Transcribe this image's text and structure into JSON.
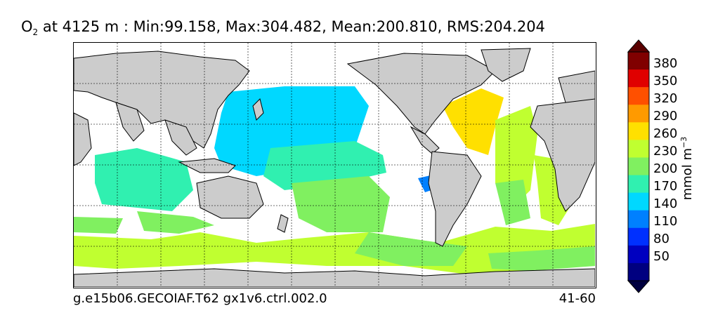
{
  "title": {
    "species": "O",
    "species_sub": "2",
    "text": " at 4125 m : Min:99.158, Max:304.482, Mean:200.810, RMS:204.204"
  },
  "caption": {
    "left": "g.e15b06.GECOIAF.T62 gx1v6.ctrl.002.0",
    "right": "41-60"
  },
  "colorbar": {
    "labels": [
      "380",
      "350",
      "320",
      "290",
      "260",
      "230",
      "200",
      "170",
      "140",
      "110",
      "80",
      "50"
    ],
    "colors": [
      "#800000",
      "#e00000",
      "#ff5000",
      "#ff9a00",
      "#ffe000",
      "#c0ff30",
      "#80f060",
      "#30f0b0",
      "#00d8ff",
      "#0080ff",
      "#0030ff",
      "#0000c0",
      "#000080"
    ],
    "unit_main": "mmol m",
    "unit_exp": "−3",
    "extend": "both"
  },
  "map": {
    "land_color": "#cccccc",
    "grid": true,
    "projection": "cylindrical, 20°E centered"
  }
}
